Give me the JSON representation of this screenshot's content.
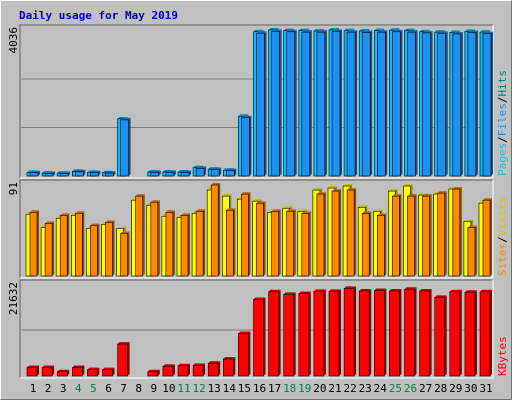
{
  "chart_data": {
    "type": "bar",
    "title": "Daily usage for May 2019",
    "categories": [
      "1",
      "2",
      "3",
      "4",
      "5",
      "6",
      "7",
      "8",
      "9",
      "10",
      "11",
      "12",
      "13",
      "14",
      "15",
      "16",
      "17",
      "18",
      "19",
      "20",
      "21",
      "22",
      "23",
      "24",
      "25",
      "26",
      "27",
      "28",
      "29",
      "30",
      "31"
    ],
    "weekend_days": [
      "4",
      "5",
      "11",
      "12",
      "18",
      "19",
      "25",
      "26"
    ],
    "colors": {
      "title": "#0000cc",
      "background": "#c0c0c0",
      "pages": "#20c0e0",
      "files": "#2090f0",
      "hits": "#00c0ff",
      "sites": "#ff8800",
      "visits": "#ffff00",
      "kbytes": "#ff0000",
      "weekday_label": "#000000",
      "weekend_label": "#008040"
    },
    "panels": [
      {
        "name": "hits-panel",
        "ymax_label": "4036",
        "ylim": [
          0,
          4036
        ],
        "legend": [
          {
            "text": "Pages",
            "color": "#20c0e0"
          },
          {
            "text": "/",
            "color": "#000000"
          },
          {
            "text": "Files",
            "color": "#2090f0"
          },
          {
            "text": "/",
            "color": "#000000"
          },
          {
            "text": "Hits",
            "color": "#008080"
          }
        ],
        "series": [
          {
            "name": "Pages",
            "values": [
              0,
              0,
              0,
              0,
              0,
              0,
              0,
              0,
              0,
              0,
              0,
              0,
              0,
              0,
              0,
              0,
              0,
              0,
              0,
              0,
              0,
              0,
              0,
              0,
              0,
              0,
              0,
              0,
              0,
              0,
              0
            ]
          },
          {
            "name": "Files",
            "values": [
              90,
              70,
              70,
              120,
              90,
              80,
              1540,
              0,
              100,
              100,
              100,
              210,
              180,
              150,
              1600,
              3920,
              3970,
              3960,
              3950,
              3950,
              3970,
              3950,
              3940,
              3950,
              3960,
              3950,
              3930,
              3920,
              3900,
              3940,
              3910
            ]
          },
          {
            "name": "Hits",
            "values": [
              100,
              80,
              80,
              130,
              100,
              90,
              1570,
              0,
              110,
              110,
              110,
              230,
              190,
              160,
              1640,
              3960,
              4010,
              3990,
              3990,
              3980,
              4010,
              3990,
              3980,
              3990,
              4000,
              3990,
              3960,
              3950,
              3940,
              3970,
              3950
            ]
          }
        ]
      },
      {
        "name": "visits-panel",
        "ymax_label": "91",
        "ylim": [
          0,
          91
        ],
        "legend": [
          {
            "text": "Sites",
            "color": "#ff8800"
          },
          {
            "text": "/",
            "color": "#000000"
          },
          {
            "text": "Visits",
            "color": "#e0c000"
          }
        ],
        "series": [
          {
            "name": "Visits",
            "values": [
              61,
              48,
              57,
              60,
              47,
              51,
              47,
              75,
              70,
              59,
              58,
              62,
              85,
              79,
              76,
              74,
              63,
              67,
              64,
              85,
              87,
              89,
              68,
              64,
              84,
              89,
              80,
              81,
              86,
              54,
              72
            ]
          },
          {
            "name": "Sites",
            "values": [
              63,
              52,
              60,
              62,
              50,
              53,
              42,
              79,
              73,
              63,
              60,
              64,
              90,
              65,
              81,
              72,
              64,
              64,
              62,
              81,
              84,
              85,
              62,
              60,
              79,
              79,
              79,
              82,
              86,
              48,
              75
            ]
          }
        ]
      },
      {
        "name": "kbytes-panel",
        "ymax_label": "21632",
        "ylim": [
          0,
          21632
        ],
        "legend": [
          {
            "text": "KBytes",
            "color": "#ff0000"
          }
        ],
        "series": [
          {
            "name": "KBytes",
            "values": [
              2000,
              2000,
              1000,
              2000,
              1500,
              1500,
              7500,
              0,
              1000,
              2300,
              2400,
              2500,
              3000,
              4000,
              10000,
              18000,
              19800,
              19200,
              19400,
              19900,
              19900,
              20600,
              20000,
              20100,
              20000,
              20400,
              20000,
              18500,
              19800,
              19700,
              19800
            ]
          }
        ]
      }
    ]
  }
}
